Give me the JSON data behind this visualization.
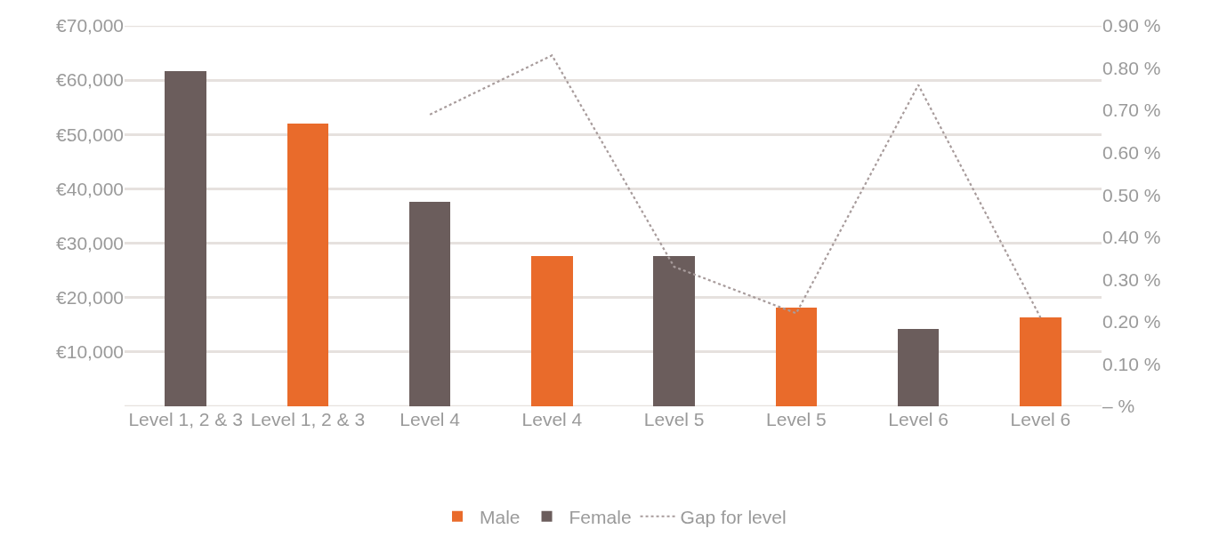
{
  "chart_data": {
    "type": "bar",
    "categories": [
      "Level 1, 2 & 3",
      "Level 1, 2 & 3",
      "Level 4",
      "Level 4",
      "Level 5",
      "Level 5",
      "Level 6",
      "Level 6"
    ],
    "series": [
      {
        "name": "Male",
        "color": "#e96b2b",
        "values": [
          null,
          52000,
          null,
          27700,
          null,
          18100,
          null,
          16300
        ]
      },
      {
        "name": "Female",
        "color": "#6b5d5c",
        "values": [
          61700,
          null,
          37600,
          null,
          27700,
          null,
          14200,
          null
        ]
      },
      {
        "name": "Gap for level",
        "type": "line",
        "axis": "y2",
        "color": "#a89c9c",
        "line_style": "dotted",
        "values": [
          null,
          null,
          0.69,
          0.83,
          0.33,
          0.22,
          0.76,
          0.21
        ]
      }
    ],
    "ylim": [
      0,
      70000
    ],
    "yticks": [
      {
        "value": 0,
        "label": null
      },
      {
        "value": 10000,
        "label": "€10,000"
      },
      {
        "value": 20000,
        "label": "€20,000"
      },
      {
        "value": 30000,
        "label": "€30,000"
      },
      {
        "value": 40000,
        "label": "€40,000"
      },
      {
        "value": 50000,
        "label": "€50,000"
      },
      {
        "value": 60000,
        "label": "€60,000"
      },
      {
        "value": 70000,
        "label": "€70,000"
      }
    ],
    "y2lim": [
      0,
      0.9
    ],
    "y2ticks": [
      {
        "value": 0,
        "label": "– %"
      },
      {
        "value": 0.1,
        "label": "0.10 %"
      },
      {
        "value": 0.2,
        "label": "0.20 %"
      },
      {
        "value": 0.3,
        "label": "0.30 %"
      },
      {
        "value": 0.4,
        "label": "0.40 %"
      },
      {
        "value": 0.5,
        "label": "0.50 %"
      },
      {
        "value": 0.6,
        "label": "0.60 %"
      },
      {
        "value": 0.7,
        "label": "0.70 %"
      },
      {
        "value": 0.8,
        "label": "0.80 %"
      },
      {
        "value": 0.9,
        "label": "0.90 %"
      }
    ],
    "grid": "y",
    "legend": "bottom"
  }
}
